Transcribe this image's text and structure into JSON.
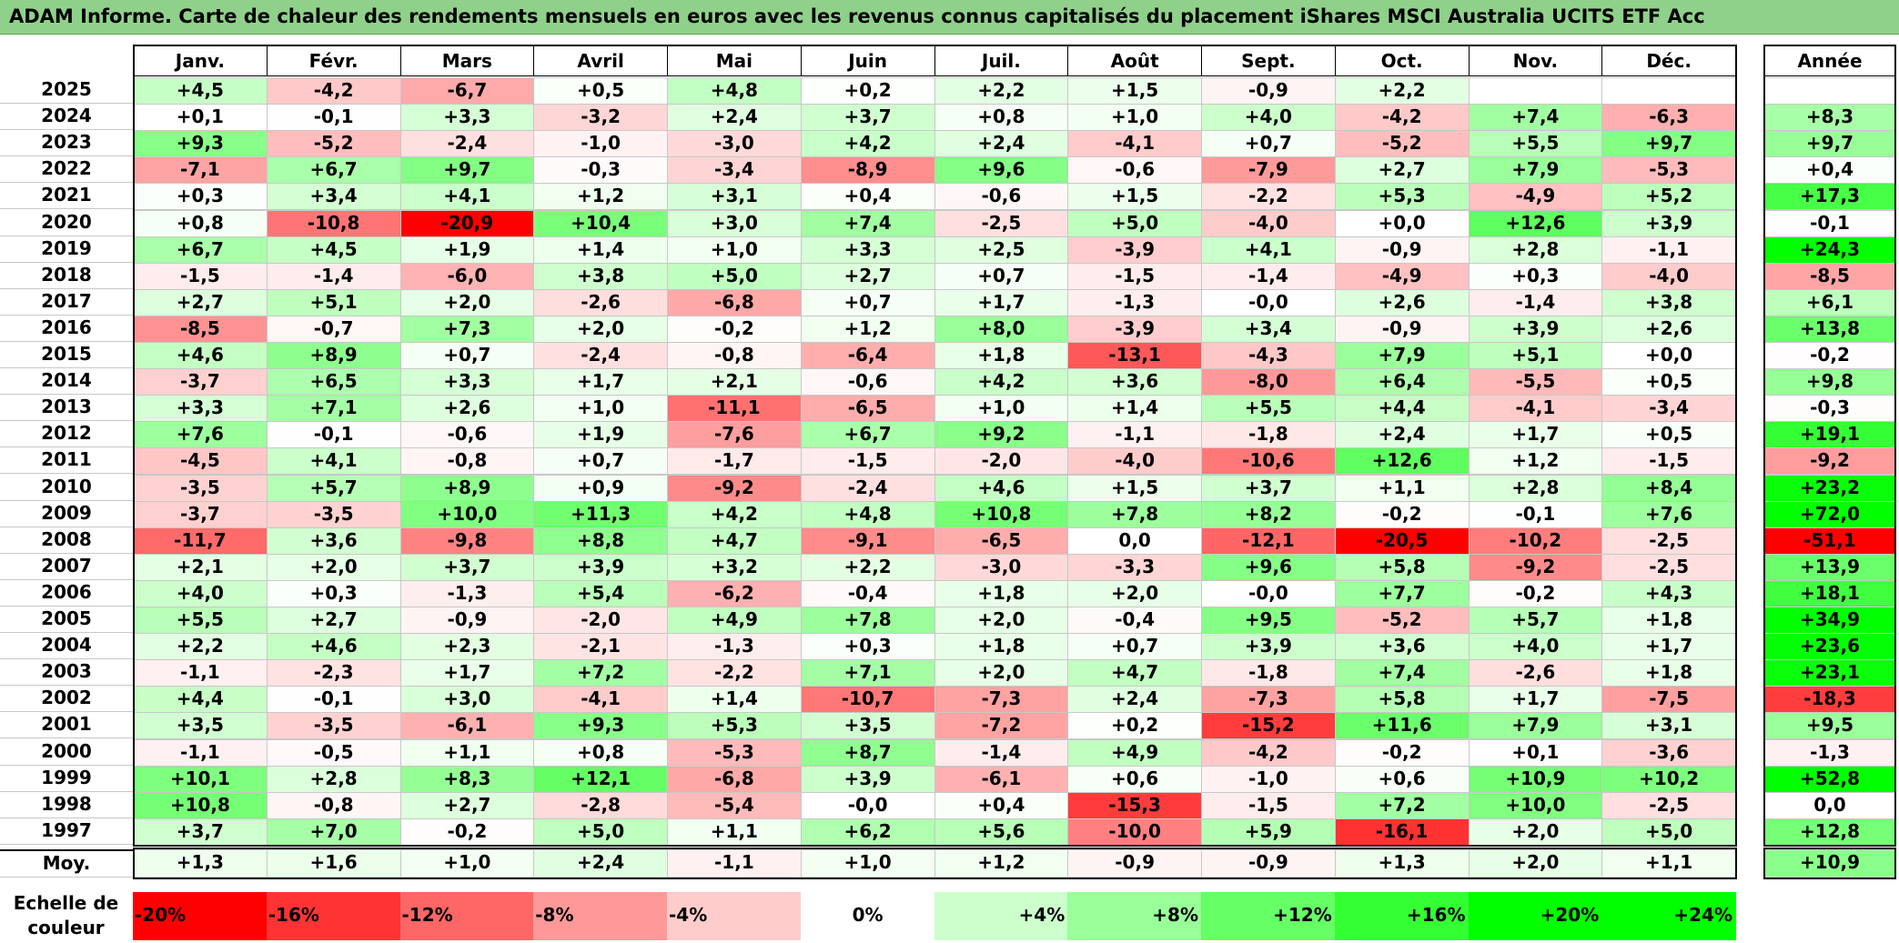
{
  "title": "ADAM Informe. Carte de chaleur des rendements mensuels en euros avec les revenus connus capitalisés du placement iShares MSCI Australia UCITS ETF Acc",
  "colors": {
    "title_bg": "#8fd18a",
    "neg": "#ff0000",
    "pos": "#00ff00",
    "neutral": "#ffffff"
  },
  "chart_data": {
    "type": "heatmap",
    "title": "ADAM Informe. Carte de chaleur des rendements mensuels en euros avec les revenus connus capitalisés du placement iShares MSCI Australia UCITS ETF Acc",
    "months": [
      "Janv.",
      "Févr.",
      "Mars",
      "Avril",
      "Mai",
      "Juin",
      "Juil.",
      "Août",
      "Sept.",
      "Oct.",
      "Nov.",
      "Déc."
    ],
    "year_header": "Année",
    "rows": [
      {
        "year": "2025",
        "values": [
          "+4,5",
          "-4,2",
          "-6,7",
          "+0,5",
          "+4,8",
          "+0,2",
          "+2,2",
          "+1,5",
          "-0,9",
          "+2,2",
          "",
          ""
        ],
        "annual": ""
      },
      {
        "year": "2024",
        "values": [
          "+0,1",
          "-0,1",
          "+3,3",
          "-3,2",
          "+2,4",
          "+3,7",
          "+0,8",
          "+1,0",
          "+4,0",
          "-4,2",
          "+7,4",
          "-6,3"
        ],
        "annual": "+8,3"
      },
      {
        "year": "2023",
        "values": [
          "+9,3",
          "-5,2",
          "-2,4",
          "-1,0",
          "-3,0",
          "+4,2",
          "+2,4",
          "-4,1",
          "+0,7",
          "-5,2",
          "+5,5",
          "+9,7"
        ],
        "annual": "+9,7"
      },
      {
        "year": "2022",
        "values": [
          "-7,1",
          "+6,7",
          "+9,7",
          "-0,3",
          "-3,4",
          "-8,9",
          "+9,6",
          "-0,6",
          "-7,9",
          "+2,7",
          "+7,9",
          "-5,3"
        ],
        "annual": "+0,4"
      },
      {
        "year": "2021",
        "values": [
          "+0,3",
          "+3,4",
          "+4,1",
          "+1,2",
          "+3,1",
          "+0,4",
          "-0,6",
          "+1,5",
          "-2,2",
          "+5,3",
          "-4,9",
          "+5,2"
        ],
        "annual": "+17,3"
      },
      {
        "year": "2020",
        "values": [
          "+0,8",
          "-10,8",
          "-20,9",
          "+10,4",
          "+3,0",
          "+7,4",
          "-2,5",
          "+5,0",
          "-4,0",
          "+0,0",
          "+12,6",
          "+3,9"
        ],
        "annual": "-0,1"
      },
      {
        "year": "2019",
        "values": [
          "+6,7",
          "+4,5",
          "+1,9",
          "+1,4",
          "+1,0",
          "+3,3",
          "+2,5",
          "-3,9",
          "+4,1",
          "-0,9",
          "+2,8",
          "-1,1"
        ],
        "annual": "+24,3"
      },
      {
        "year": "2018",
        "values": [
          "-1,5",
          "-1,4",
          "-6,0",
          "+3,8",
          "+5,0",
          "+2,7",
          "+0,7",
          "-1,5",
          "-1,4",
          "-4,9",
          "+0,3",
          "-4,0"
        ],
        "annual": "-8,5"
      },
      {
        "year": "2017",
        "values": [
          "+2,7",
          "+5,1",
          "+2,0",
          "-2,6",
          "-6,8",
          "+0,7",
          "+1,7",
          "-1,3",
          "-0,0",
          "+2,6",
          "-1,4",
          "+3,8"
        ],
        "annual": "+6,1"
      },
      {
        "year": "2016",
        "values": [
          "-8,5",
          "-0,7",
          "+7,3",
          "+2,0",
          "-0,2",
          "+1,2",
          "+8,0",
          "-3,9",
          "+3,4",
          "-0,9",
          "+3,9",
          "+2,6"
        ],
        "annual": "+13,8"
      },
      {
        "year": "2015",
        "values": [
          "+4,6",
          "+8,9",
          "+0,7",
          "-2,4",
          "-0,8",
          "-6,4",
          "+1,8",
          "-13,1",
          "-4,3",
          "+7,9",
          "+5,1",
          "+0,0"
        ],
        "annual": "-0,2"
      },
      {
        "year": "2014",
        "values": [
          "-3,7",
          "+6,5",
          "+3,3",
          "+1,7",
          "+2,1",
          "-0,6",
          "+4,2",
          "+3,6",
          "-8,0",
          "+6,4",
          "-5,5",
          "+0,5"
        ],
        "annual": "+9,8"
      },
      {
        "year": "2013",
        "values": [
          "+3,3",
          "+7,1",
          "+2,6",
          "+1,0",
          "-11,1",
          "-6,5",
          "+1,0",
          "+1,4",
          "+5,5",
          "+4,4",
          "-4,1",
          "-3,4"
        ],
        "annual": "-0,3"
      },
      {
        "year": "2012",
        "values": [
          "+7,6",
          "-0,1",
          "-0,6",
          "+1,9",
          "-7,6",
          "+6,7",
          "+9,2",
          "-1,1",
          "-1,8",
          "+2,4",
          "+1,7",
          "+0,5"
        ],
        "annual": "+19,1"
      },
      {
        "year": "2011",
        "values": [
          "-4,5",
          "+4,1",
          "-0,8",
          "+0,7",
          "-1,7",
          "-1,5",
          "-2,0",
          "-4,0",
          "-10,6",
          "+12,6",
          "+1,2",
          "-1,5"
        ],
        "annual": "-9,2"
      },
      {
        "year": "2010",
        "values": [
          "-3,5",
          "+5,7",
          "+8,9",
          "+0,9",
          "-9,2",
          "-2,4",
          "+4,6",
          "+1,5",
          "+3,7",
          "+1,1",
          "+2,8",
          "+8,4"
        ],
        "annual": "+23,2"
      },
      {
        "year": "2009",
        "values": [
          "-3,7",
          "-3,5",
          "+10,0",
          "+11,3",
          "+4,2",
          "+4,8",
          "+10,8",
          "+7,8",
          "+8,2",
          "-0,2",
          "-0,1",
          "+7,6"
        ],
        "annual": "+72,0"
      },
      {
        "year": "2008",
        "values": [
          "-11,7",
          "+3,6",
          "-9,8",
          "+8,8",
          "+4,7",
          "-9,1",
          "-6,5",
          "0,0",
          "-12,1",
          "-20,5",
          "-10,2",
          "-2,5"
        ],
        "annual": "-51,1"
      },
      {
        "year": "2007",
        "values": [
          "+2,1",
          "+2,0",
          "+3,7",
          "+3,9",
          "+3,2",
          "+2,2",
          "-3,0",
          "-3,3",
          "+9,6",
          "+5,8",
          "-9,2",
          "-2,5"
        ],
        "annual": "+13,9"
      },
      {
        "year": "2006",
        "values": [
          "+4,0",
          "+0,3",
          "-1,3",
          "+5,4",
          "-6,2",
          "-0,4",
          "+1,8",
          "+2,0",
          "-0,0",
          "+7,7",
          "-0,2",
          "+4,3"
        ],
        "annual": "+18,1"
      },
      {
        "year": "2005",
        "values": [
          "+5,5",
          "+2,7",
          "-0,9",
          "-2,0",
          "+4,9",
          "+7,8",
          "+2,0",
          "-0,4",
          "+9,5",
          "-5,2",
          "+5,7",
          "+1,8"
        ],
        "annual": "+34,9"
      },
      {
        "year": "2004",
        "values": [
          "+2,2",
          "+4,6",
          "+2,3",
          "-2,1",
          "-1,3",
          "+0,3",
          "+1,8",
          "+0,7",
          "+3,9",
          "+3,6",
          "+4,0",
          "+1,7"
        ],
        "annual": "+23,6"
      },
      {
        "year": "2003",
        "values": [
          "-1,1",
          "-2,3",
          "+1,7",
          "+7,2",
          "-2,2",
          "+7,1",
          "+2,0",
          "+4,7",
          "-1,8",
          "+7,4",
          "-2,6",
          "+1,8"
        ],
        "annual": "+23,1"
      },
      {
        "year": "2002",
        "values": [
          "+4,4",
          "-0,1",
          "+3,0",
          "-4,1",
          "+1,4",
          "-10,7",
          "-7,3",
          "+2,4",
          "-7,3",
          "+5,8",
          "+1,7",
          "-7,5"
        ],
        "annual": "-18,3"
      },
      {
        "year": "2001",
        "values": [
          "+3,5",
          "-3,5",
          "-6,1",
          "+9,3",
          "+5,3",
          "+3,5",
          "-7,2",
          "+0,2",
          "-15,2",
          "+11,6",
          "+7,9",
          "+3,1"
        ],
        "annual": "+9,5"
      },
      {
        "year": "2000",
        "values": [
          "-1,1",
          "-0,5",
          "+1,1",
          "+0,8",
          "-5,3",
          "+8,7",
          "-1,4",
          "+4,9",
          "-4,2",
          "-0,2",
          "+0,1",
          "-3,6"
        ],
        "annual": "-1,3"
      },
      {
        "year": "1999",
        "values": [
          "+10,1",
          "+2,8",
          "+8,3",
          "+12,1",
          "-6,8",
          "+3,9",
          "-6,1",
          "+0,6",
          "-1,0",
          "+0,6",
          "+10,9",
          "+10,2"
        ],
        "annual": "+52,8"
      },
      {
        "year": "1998",
        "values": [
          "+10,8",
          "-0,8",
          "+2,7",
          "-2,8",
          "-5,4",
          "-0,0",
          "+0,4",
          "-15,3",
          "-1,5",
          "+7,2",
          "+10,0",
          "-2,5"
        ],
        "annual": "0,0"
      },
      {
        "year": "1997",
        "values": [
          "+3,7",
          "+7,0",
          "-0,2",
          "+5,0",
          "+1,1",
          "+6,2",
          "+5,6",
          "-10,0",
          "+5,9",
          "-16,1",
          "+2,0",
          "+5,0"
        ],
        "annual": "+12,8"
      }
    ],
    "average": {
      "label": "Moy.",
      "values": [
        "+1,3",
        "+1,6",
        "+1,0",
        "+2,4",
        "-1,1",
        "+1,0",
        "+1,2",
        "-0,9",
        "-0,9",
        "+1,3",
        "+2,0",
        "+1,1"
      ],
      "annual": "+10,9"
    },
    "scale": {
      "label": "Echelle de couleur",
      "stops": [
        {
          "label": "-20%",
          "value": -20
        },
        {
          "label": "-16%",
          "value": -16
        },
        {
          "label": "-12%",
          "value": -12
        },
        {
          "label": "-8%",
          "value": -8
        },
        {
          "label": "-4%",
          "value": -4
        },
        {
          "label": "0%",
          "value": 0
        },
        {
          "label": "+4%",
          "value": 4
        },
        {
          "label": "+8%",
          "value": 8
        },
        {
          "label": "+12%",
          "value": 12
        },
        {
          "label": "+16%",
          "value": 16
        },
        {
          "label": "+20%",
          "value": 20
        },
        {
          "label": "+24%",
          "value": 24
        }
      ]
    }
  }
}
